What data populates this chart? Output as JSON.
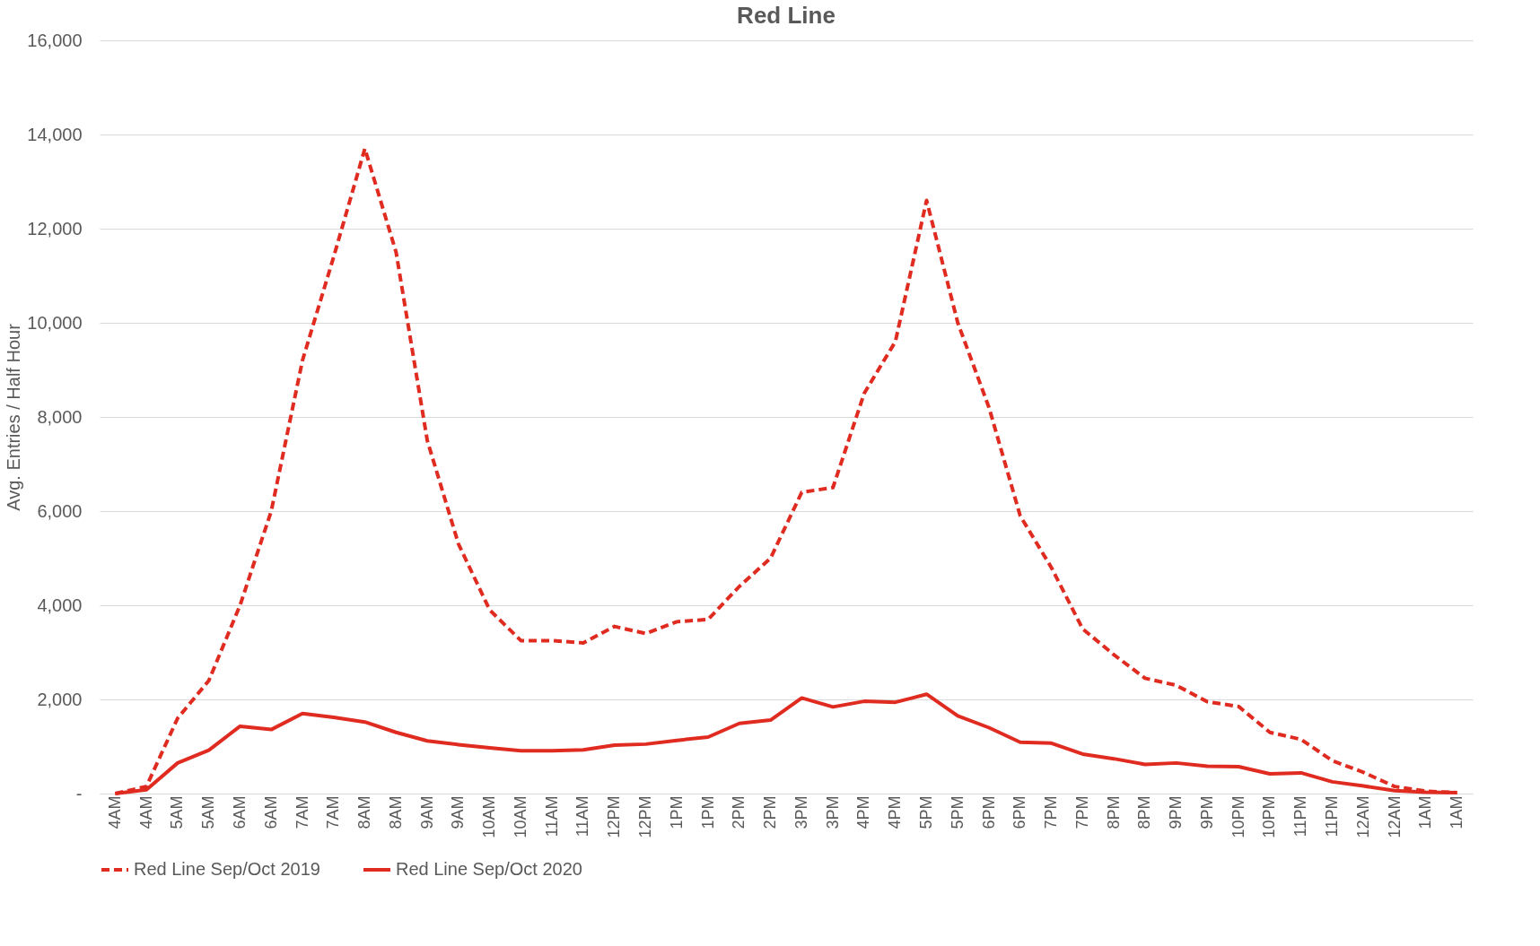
{
  "chart_data": {
    "type": "line",
    "title": "Red Line",
    "ylabel": "Avg. Entries / Half Hour",
    "categories": [
      "4AM",
      "4AM",
      "5AM",
      "5AM",
      "6AM",
      "6AM",
      "7AM",
      "7AM",
      "8AM",
      "8AM",
      "9AM",
      "9AM",
      "10AM",
      "10AM",
      "11AM",
      "11AM",
      "12PM",
      "12PM",
      "1PM",
      "1PM",
      "2PM",
      "2PM",
      "3PM",
      "3PM",
      "4PM",
      "4PM",
      "5PM",
      "5PM",
      "6PM",
      "6PM",
      "7PM",
      "7PM",
      "8PM",
      "8PM",
      "9PM",
      "9PM",
      "10PM",
      "10PM",
      "11PM",
      "11PM",
      "12AM",
      "12AM",
      "1AM",
      "1AM"
    ],
    "series": [
      {
        "name": "Red Line Sep/Oct 2019",
        "color": "#e02b20",
        "line_style": "dashed",
        "values": [
          0,
          150,
          1600,
          2400,
          4000,
          6000,
          9200,
          11400,
          13700,
          11500,
          7500,
          5300,
          3900,
          3250,
          3250,
          3200,
          3550,
          3400,
          3650,
          3700,
          4400,
          5000,
          6400,
          6500,
          8500,
          9600,
          12600,
          10000,
          8200,
          5900,
          4800,
          3500,
          2950,
          2450,
          2300,
          1950,
          1850,
          1300,
          1150,
          700,
          450,
          150,
          50,
          20
        ]
      },
      {
        "name": "Red Line Sep/Oct 2020",
        "color": "#e02b20",
        "line_style": "solid",
        "values": [
          0,
          80,
          650,
          920,
          1430,
          1360,
          1700,
          1620,
          1520,
          1300,
          1120,
          1040,
          970,
          910,
          910,
          930,
          1030,
          1050,
          1130,
          1200,
          1490,
          1560,
          2030,
          1840,
          1960,
          1940,
          2110,
          1650,
          1400,
          1090,
          1070,
          840,
          740,
          620,
          650,
          580,
          570,
          420,
          440,
          250,
          160,
          60,
          30,
          20
        ]
      }
    ],
    "ylim": [
      0,
      16000
    ],
    "yticks": [
      {
        "value": 0,
        "label": "-"
      },
      {
        "value": 2000,
        "label": "2,000"
      },
      {
        "value": 4000,
        "label": "4,000"
      },
      {
        "value": 6000,
        "label": "6,000"
      },
      {
        "value": 8000,
        "label": "8,000"
      },
      {
        "value": 10000,
        "label": "10,000"
      },
      {
        "value": 12000,
        "label": "12,000"
      },
      {
        "value": 14000,
        "label": "14,000"
      },
      {
        "value": 16000,
        "label": "16,000"
      }
    ],
    "grid": "y",
    "legend": "bottom",
    "marker": "none"
  }
}
